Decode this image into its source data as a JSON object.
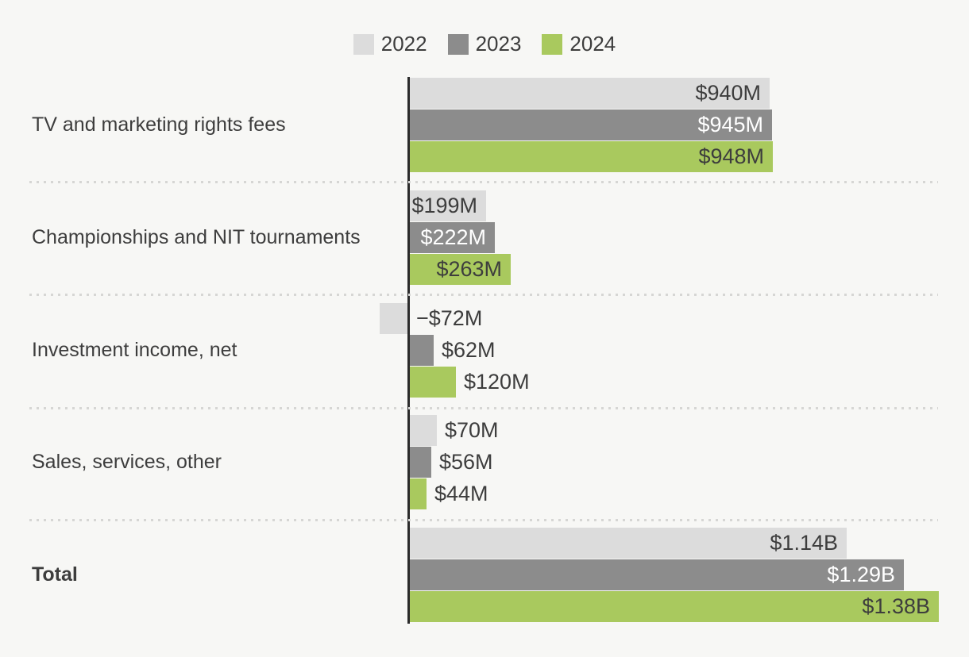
{
  "legend": {
    "items": [
      {
        "label": "2022",
        "color": "#dcdcdc"
      },
      {
        "label": "2023",
        "color": "#8c8c8c"
      },
      {
        "label": "2024",
        "color": "#a9c95e"
      }
    ]
  },
  "chart_data": {
    "type": "bar",
    "orientation": "horizontal",
    "unit": "USD millions",
    "title": "",
    "xlabel": "",
    "ylabel": "",
    "categories": [
      "TV and marketing rights fees",
      "Championships and NIT tournaments",
      "Investment income, net",
      "Sales, services, other",
      "Total"
    ],
    "series": [
      {
        "name": "2022",
        "color": "#dcdcdc",
        "label_text_color": "#3d3d3d",
        "values": [
          940,
          199,
          -72,
          70,
          1140
        ],
        "labels": [
          "$940M",
          "$199M",
          "−$72M",
          "$70M",
          "$1.14B"
        ]
      },
      {
        "name": "2023",
        "color": "#8c8c8c",
        "label_text_color": "#ffffff",
        "values": [
          945,
          222,
          62,
          56,
          1290
        ],
        "labels": [
          "$945M",
          "$222M",
          "$62M",
          "$56M",
          "$1.29B"
        ]
      },
      {
        "name": "2024",
        "color": "#a9c95e",
        "label_text_color": "#3d3d3d",
        "values": [
          948,
          263,
          120,
          44,
          1380
        ],
        "labels": [
          "$948M",
          "$263M",
          "$120M",
          "$44M",
          "$1.38B"
        ]
      }
    ],
    "bold_categories": [
      "Total"
    ],
    "axis": {
      "zero_line": true,
      "zero_line_color": "#2b2b2b"
    },
    "legend_position": "top-center",
    "grid": "dotted-row-separators"
  },
  "colors": {
    "background": "#f7f7f5",
    "text": "#3d3d3d",
    "axis_line": "#2b2b2b",
    "separator": "#d6d6d4"
  }
}
